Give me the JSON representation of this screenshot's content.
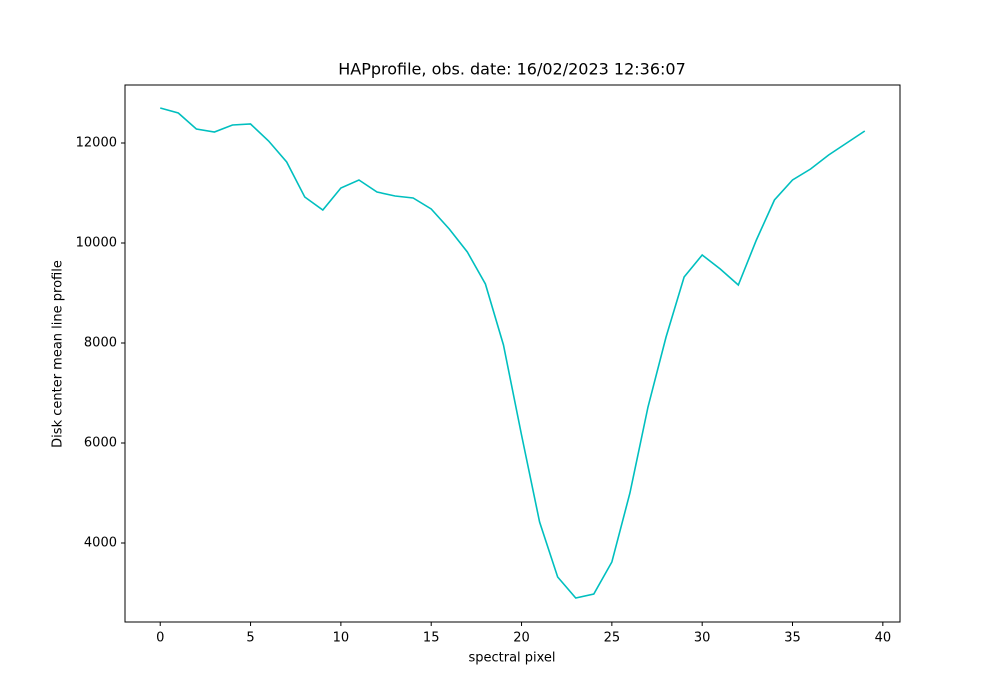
{
  "chart_data": {
    "type": "line",
    "title": "HAPprofile, obs. date: 16/02/2023 12:36:07",
    "x_label": "spectral pixel",
    "y_label": "Disk center mean line profile",
    "x": [
      0,
      1,
      2,
      3,
      4,
      5,
      6,
      7,
      8,
      9,
      10,
      11,
      12,
      13,
      14,
      15,
      16,
      17,
      18,
      19,
      20,
      21,
      22,
      23,
      24,
      25,
      26,
      27,
      28,
      29,
      30,
      31,
      32,
      33,
      34,
      35,
      36,
      37,
      38,
      39
    ],
    "series": [
      {
        "color": "#00bfbf",
        "values": [
          12700,
          12600,
          12280,
          12220,
          12360,
          12380,
          12040,
          11620,
          10920,
          10660,
          11100,
          11260,
          11020,
          10940,
          10900,
          10680,
          10280,
          9820,
          9180,
          7960,
          6160,
          4420,
          3320,
          2900,
          2980,
          3620,
          5000,
          6720,
          8120,
          9320,
          9760,
          9480,
          9160,
          10060,
          10860,
          11260,
          11480,
          11760,
          12000,
          12240
        ]
      }
    ],
    "xlim": [
      -1.95,
      40.95
    ],
    "ylim": [
      2420,
      13160
    ],
    "xticks": [
      0,
      5,
      10,
      15,
      20,
      25,
      30,
      35,
      40
    ],
    "yticks": [
      4000,
      6000,
      8000,
      10000,
      12000
    ],
    "grid": false
  }
}
